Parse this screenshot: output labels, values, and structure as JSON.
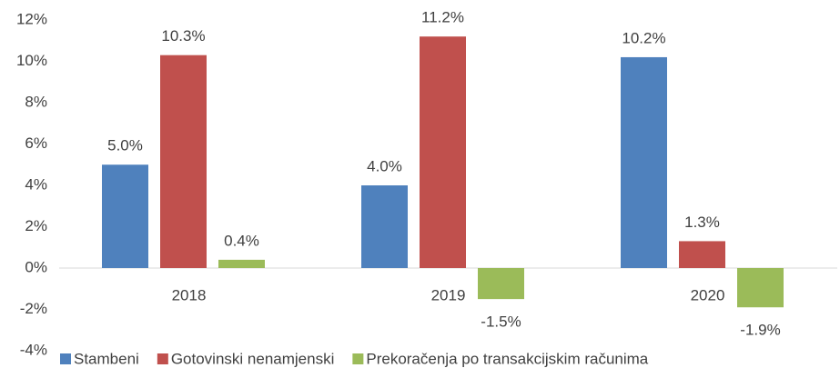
{
  "chart_data": {
    "type": "bar",
    "categories": [
      "2018",
      "2019",
      "2020"
    ],
    "series": [
      {
        "name": "Stambeni",
        "color": "#4f81bd",
        "values": [
          5.0,
          4.0,
          10.2
        ],
        "value_labels": [
          "5.0%",
          "4.0%",
          "10.2%"
        ]
      },
      {
        "name": "Gotovinski nenamjenski",
        "color": "#c0504d",
        "values": [
          10.3,
          11.2,
          1.3
        ],
        "value_labels": [
          "10.3%",
          "11.2%",
          "1.3%"
        ]
      },
      {
        "name": "Prekoračenja po transakcijskim računima",
        "color": "#9bbb59",
        "values": [
          0.4,
          -1.5,
          -1.9
        ],
        "value_labels": [
          "0.4%",
          "-1.5%",
          "-1.9%"
        ]
      }
    ],
    "ylim": [
      -4,
      12
    ],
    "yticks": [
      {
        "value": -4,
        "label": "-4%"
      },
      {
        "value": -2,
        "label": "-2%"
      },
      {
        "value": 0,
        "label": "0%"
      },
      {
        "value": 2,
        "label": "2%"
      },
      {
        "value": 4,
        "label": "4%"
      },
      {
        "value": 6,
        "label": "6%"
      },
      {
        "value": 8,
        "label": "8%"
      },
      {
        "value": 10,
        "label": "10%"
      },
      {
        "value": 12,
        "label": "12%"
      }
    ],
    "grid": false,
    "legend": "bottom"
  }
}
